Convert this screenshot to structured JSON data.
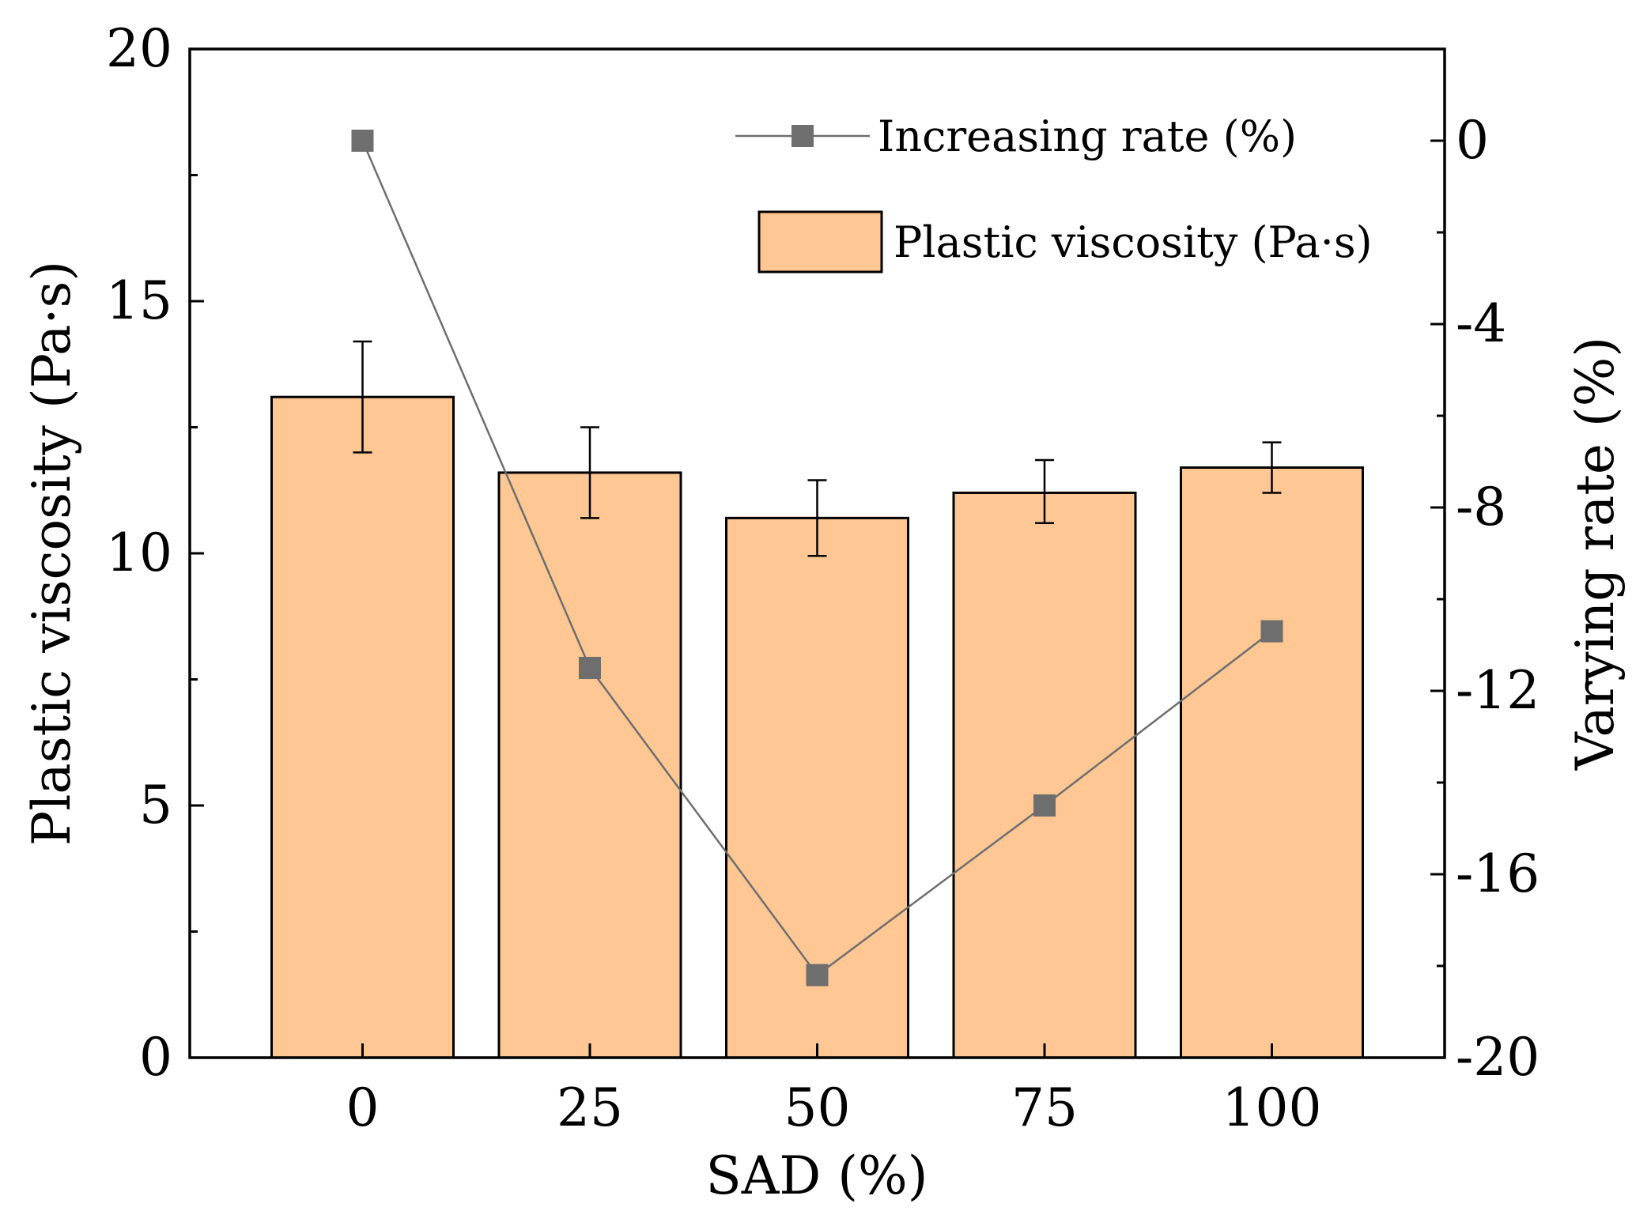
{
  "chart_data": {
    "type": "bar+line",
    "xlabel": "SAD (%)",
    "ylabel_left": "Plastic viscosity (Pa·s)",
    "ylabel_right": "Varying rate (%)",
    "categories": [
      "0",
      "25",
      "50",
      "75",
      "100"
    ],
    "x_values": [
      0,
      25,
      50,
      75,
      100
    ],
    "xlim": [
      -19,
      119
    ],
    "ylim_left": [
      0,
      20
    ],
    "ylim_right": [
      -20,
      2
    ],
    "left_ticks": [
      0,
      5,
      10,
      15,
      20
    ],
    "left_tick_labels": [
      "0",
      "5",
      "10",
      "15",
      "20"
    ],
    "right_ticks": [
      -20,
      -16,
      -12,
      -8,
      -4,
      0
    ],
    "right_tick_labels": [
      "-20",
      "-16",
      "-12",
      "-8",
      "-4",
      "0"
    ],
    "bar_width": 20,
    "series": [
      {
        "name": "Plastic viscosity (Pa·s)",
        "type": "bar",
        "axis": "left",
        "values": [
          13.1,
          11.6,
          10.7,
          11.2,
          11.7
        ],
        "error_plus": [
          1.1,
          0.9,
          0.75,
          0.65,
          0.5
        ],
        "error_minus": [
          1.1,
          0.9,
          0.75,
          0.6,
          0.5
        ]
      },
      {
        "name": "Increasing rate (%)",
        "type": "line",
        "axis": "right",
        "marker": "square",
        "values": [
          0.0,
          -11.5,
          -18.2,
          -14.5,
          -10.7
        ]
      }
    ],
    "legend": [
      "Increasing rate (%)",
      "Plastic viscosity (Pa·s)"
    ],
    "legend_position": "top-right",
    "colors": {
      "bar_fill": "#FEC794",
      "bar_stroke": "#000000",
      "line": "#6E6E6E",
      "marker": "#6E6E6E"
    }
  }
}
